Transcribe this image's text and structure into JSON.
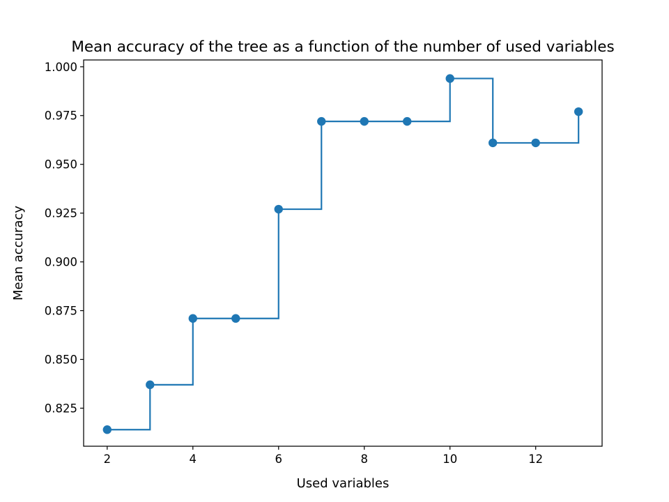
{
  "chart_data": {
    "type": "line",
    "title": "Mean accuracy of the tree as a function of the number of used variables",
    "xlabel": "Used variables",
    "ylabel": "Mean accuracy",
    "xlim": [
      1.45,
      13.55
    ],
    "ylim": [
      0.8055,
      1.0035
    ],
    "xticks": [
      2,
      4,
      6,
      8,
      10,
      12
    ],
    "yticks": [
      0.825,
      0.85,
      0.875,
      0.9,
      0.925,
      0.95,
      0.975,
      1.0
    ],
    "ytick_labels": [
      "0.825",
      "0.850",
      "0.875",
      "0.900",
      "0.925",
      "0.950",
      "0.975",
      "1.000"
    ],
    "grid": false,
    "line_style": "steps-post",
    "marker": "circle",
    "colors": {
      "series": "#1f77b4",
      "axes": "#000000",
      "background": "#ffffff"
    },
    "series": [
      {
        "x": [
          2,
          3,
          4,
          5,
          6,
          7,
          8,
          9,
          10,
          11,
          12,
          13
        ],
        "values": [
          0.814,
          0.837,
          0.871,
          0.871,
          0.927,
          0.972,
          0.972,
          0.972,
          0.994,
          0.961,
          0.961,
          0.977
        ]
      }
    ]
  }
}
